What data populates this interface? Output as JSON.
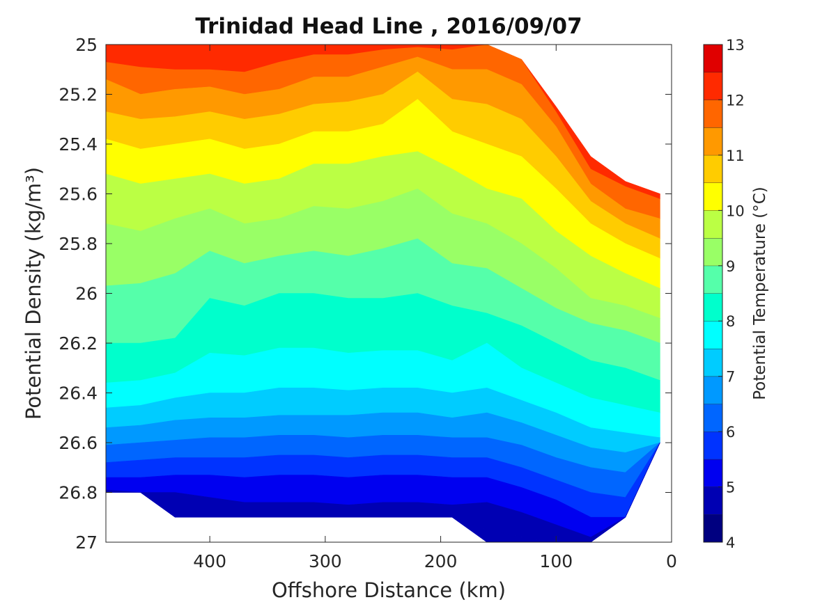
{
  "chart_data": {
    "type": "contour",
    "title": "Trinidad Head Line , 2016/09/07",
    "xlabel": "Offshore Distance (km)",
    "ylabel": "Potential Density (kg/m³)",
    "colorbar_label": "Potential Temperature (°C)",
    "x_reversed": true,
    "y_reversed": true,
    "xlim": [
      490,
      0
    ],
    "ylim": [
      25,
      27
    ],
    "x_ticks": [
      400,
      300,
      200,
      100,
      0
    ],
    "y_ticks": [
      25,
      25.2,
      25.4,
      25.6,
      25.8,
      26,
      26.2,
      26.4,
      26.6,
      26.8,
      27
    ],
    "x_tick_labels": [
      "400",
      "300",
      "200",
      "100",
      "0"
    ],
    "y_tick_labels": [
      "25",
      "25.2",
      "25.4",
      "25.6",
      "25.8",
      "26",
      "26.2",
      "26.4",
      "26.6",
      "26.8",
      "27"
    ],
    "colorbar_ticks": [
      "4",
      "5",
      "6",
      "7",
      "8",
      "9",
      "10",
      "11",
      "12",
      "13"
    ],
    "colorbar_range": [
      4,
      13
    ],
    "contour_levels": [
      4,
      4.5,
      5,
      5.5,
      6,
      6.5,
      7,
      7.5,
      8,
      8.5,
      9,
      9.5,
      10,
      10.5,
      11,
      11.5,
      12,
      12.5,
      13
    ],
    "colormap": [
      "#000080",
      "#0000b3",
      "#0000f0",
      "#0033ff",
      "#0066ff",
      "#0099ff",
      "#00ccff",
      "#00ffff",
      "#00ffcc",
      "#55ffaa",
      "#99ff66",
      "#bbff44",
      "#ffff00",
      "#ffcc00",
      "#ff9900",
      "#ff6600",
      "#ff2a00",
      "#e00000",
      "#b00000"
    ],
    "sample_distances_km": [
      490,
      460,
      430,
      400,
      370,
      340,
      310,
      280,
      250,
      220,
      190,
      160,
      130,
      100,
      70,
      40,
      10
    ],
    "density_upper_limit": [
      25,
      25,
      25,
      25,
      25,
      25,
      25,
      25,
      25,
      25,
      25,
      25,
      25.06,
      25.25,
      25.45,
      25.55,
      25.6
    ],
    "density_lower_limit": [
      26.8,
      26.8,
      26.9,
      26.9,
      26.9,
      26.9,
      26.9,
      26.9,
      26.9,
      26.9,
      26.9,
      27,
      27,
      27,
      27,
      26.9,
      26.6
    ],
    "isotherm_densities": [
      {
        "temperature": 12.0,
        "density": [
          25.07,
          25.09,
          25.1,
          25.1,
          25.11,
          25.07,
          25.04,
          25.04,
          25.02,
          25.01,
          25.02,
          25.0,
          25.03,
          25.27,
          25.5,
          25.57,
          25.62
        ]
      },
      {
        "temperature": 11.5,
        "density": [
          25.14,
          25.2,
          25.18,
          25.17,
          25.2,
          25.18,
          25.13,
          25.13,
          25.09,
          25.05,
          25.1,
          25.1,
          25.16,
          25.33,
          25.56,
          25.66,
          25.7
        ]
      },
      {
        "temperature": 11.0,
        "density": [
          25.27,
          25.3,
          25.29,
          25.27,
          25.3,
          25.28,
          25.24,
          25.23,
          25.2,
          25.11,
          25.22,
          25.24,
          25.3,
          25.45,
          25.63,
          25.72,
          25.78
        ]
      },
      {
        "temperature": 10.5,
        "density": [
          25.38,
          25.42,
          25.4,
          25.38,
          25.42,
          25.4,
          25.35,
          25.35,
          25.32,
          25.22,
          25.35,
          25.4,
          25.45,
          25.58,
          25.72,
          25.8,
          25.86
        ]
      },
      {
        "temperature": 10.0,
        "density": [
          25.52,
          25.56,
          25.54,
          25.52,
          25.56,
          25.54,
          25.48,
          25.48,
          25.45,
          25.43,
          25.5,
          25.58,
          25.62,
          25.75,
          25.85,
          25.92,
          25.98
        ]
      },
      {
        "temperature": 9.5,
        "density": [
          25.72,
          25.75,
          25.7,
          25.66,
          25.72,
          25.7,
          25.65,
          25.66,
          25.63,
          25.58,
          25.68,
          25.72,
          25.8,
          25.9,
          26.02,
          26.05,
          26.1
        ]
      },
      {
        "temperature": 9.0,
        "density": [
          25.97,
          25.96,
          25.92,
          25.83,
          25.88,
          25.85,
          25.83,
          25.85,
          25.82,
          25.78,
          25.88,
          25.9,
          25.98,
          26.06,
          26.12,
          26.15,
          26.2
        ]
      },
      {
        "temperature": 8.5,
        "density": [
          26.2,
          26.2,
          26.18,
          26.02,
          26.05,
          26.0,
          26.0,
          26.02,
          26.02,
          26.0,
          26.05,
          26.08,
          26.13,
          26.2,
          26.27,
          26.3,
          26.35
        ]
      },
      {
        "temperature": 8.0,
        "density": [
          26.36,
          26.35,
          26.32,
          26.24,
          26.25,
          26.22,
          26.22,
          26.24,
          26.23,
          26.23,
          26.27,
          26.2,
          26.3,
          26.36,
          26.42,
          26.45,
          26.48
        ]
      },
      {
        "temperature": 7.5,
        "density": [
          26.46,
          26.45,
          26.42,
          26.4,
          26.4,
          26.38,
          26.38,
          26.39,
          26.38,
          26.38,
          26.4,
          26.38,
          26.43,
          26.48,
          26.54,
          26.56,
          26.58
        ]
      },
      {
        "temperature": 7.0,
        "density": [
          26.54,
          26.53,
          26.51,
          26.5,
          26.5,
          26.49,
          26.49,
          26.49,
          26.48,
          26.48,
          26.5,
          26.48,
          26.52,
          26.57,
          26.62,
          26.64,
          26.66
        ]
      },
      {
        "temperature": 6.5,
        "density": [
          26.61,
          26.6,
          26.59,
          26.58,
          26.58,
          26.57,
          26.57,
          26.58,
          26.57,
          26.57,
          26.58,
          26.58,
          26.61,
          26.66,
          26.7,
          26.72,
          26.74
        ]
      },
      {
        "temperature": 6.0,
        "density": [
          26.68,
          26.67,
          26.66,
          26.66,
          26.66,
          26.65,
          26.65,
          26.66,
          26.65,
          26.65,
          26.66,
          26.66,
          26.7,
          26.75,
          26.8,
          26.82,
          26.84
        ]
      },
      {
        "temperature": 5.5,
        "density": [
          26.74,
          26.74,
          26.73,
          26.73,
          26.74,
          26.73,
          26.73,
          26.74,
          26.73,
          26.73,
          26.74,
          26.74,
          26.78,
          26.83,
          26.9,
          26.92,
          26.94
        ]
      },
      {
        "temperature": 5.0,
        "density": [
          26.79,
          26.8,
          26.8,
          26.82,
          26.84,
          26.84,
          26.84,
          26.85,
          26.84,
          26.84,
          26.85,
          26.84,
          26.88,
          26.93,
          26.98,
          27.0,
          27.0
        ]
      },
      {
        "temperature": 4.5,
        "density": [
          27.0,
          27.0,
          27.0,
          27.0,
          27.0,
          27.0,
          27.0,
          27.0,
          27.0,
          27.0,
          27.0,
          26.95,
          26.98,
          27.0,
          27.0,
          27.0,
          27.0
        ]
      }
    ]
  }
}
